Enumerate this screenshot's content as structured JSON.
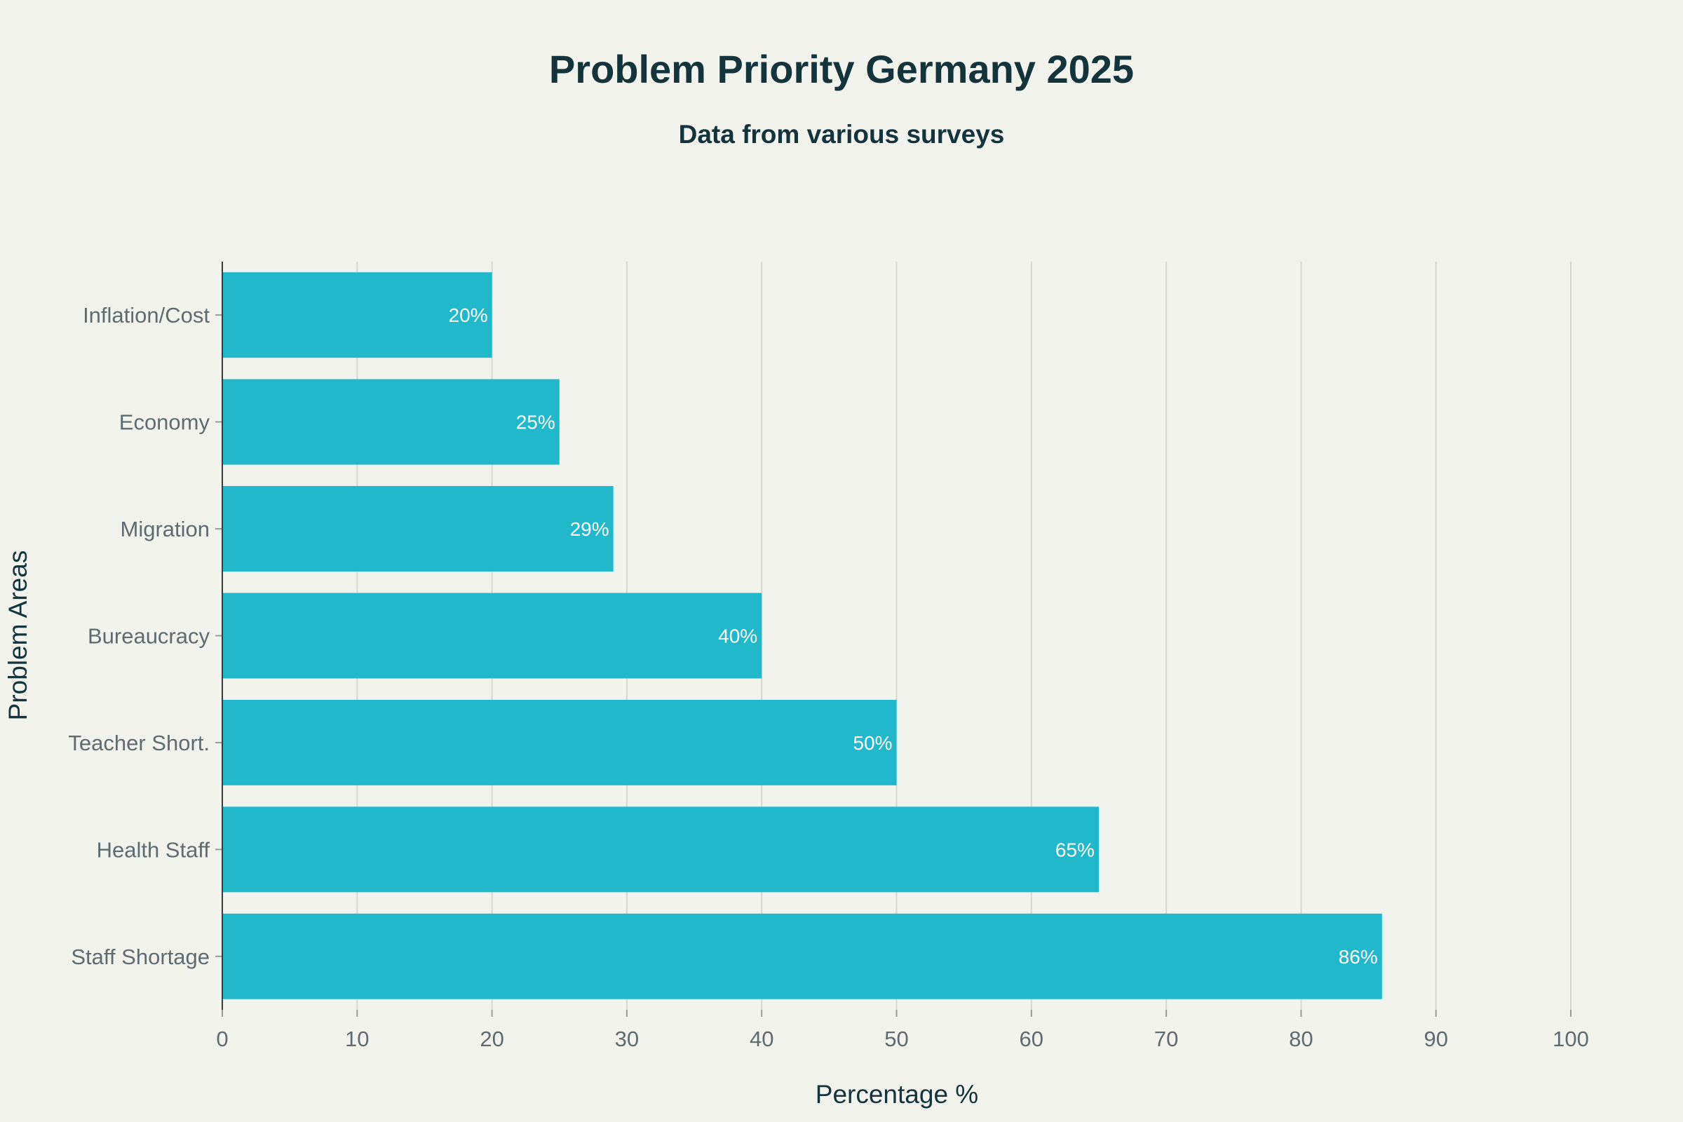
{
  "chart_data": {
    "type": "bar",
    "orientation": "horizontal",
    "title": "Problem Priority Germany 2025",
    "subtitle": "Data from various surveys",
    "xlabel": "Percentage %",
    "ylabel": "Problem Areas",
    "categories": [
      "Inflation/Cost",
      "Economy",
      "Migration",
      "Bureaucracy",
      "Teacher Short.",
      "Health Staff",
      "Staff Shortage"
    ],
    "values": [
      20,
      25,
      29,
      40,
      50,
      65,
      86
    ],
    "data_labels": [
      "20%",
      "25%",
      "29%",
      "40%",
      "50%",
      "65%",
      "86%"
    ],
    "xlim": [
      0,
      100
    ],
    "xticks": [
      0,
      10,
      20,
      30,
      40,
      50,
      60,
      70,
      80,
      90,
      100
    ],
    "grid": true,
    "legend": "none",
    "colors": {
      "bar": "#21b8cc",
      "background": "#f3f3ee",
      "title": "#13343b",
      "tick": "#5f6b70",
      "grid": "#d6d6d2"
    }
  }
}
